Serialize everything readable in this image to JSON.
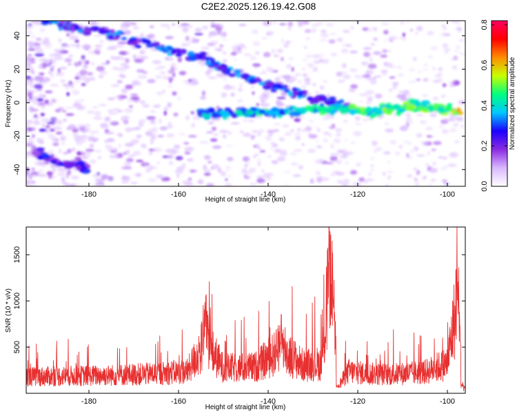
{
  "title": "C2E2.2025.126.19.42.G08",
  "chart_data": [
    {
      "type": "heatmap",
      "xlabel": "Height of straight line (km)",
      "ylabel": "Frequency (Hz)",
      "xlim": [
        -194,
        -96
      ],
      "ylim": [
        -50,
        49
      ],
      "x_ticks": [
        "-180",
        "-160",
        "-140",
        "-120",
        "-100"
      ],
      "y_ticks": [
        "-40",
        "-20",
        "0",
        "20",
        "40"
      ],
      "colorbar": {
        "label": "Normalized spectral amplitude",
        "range": [
          0,
          0.82
        ],
        "ticks": [
          "0.0",
          "0.2",
          "0.4",
          "0.6",
          "0.8"
        ],
        "colors": [
          "#ffffff",
          "#d9b8ff",
          "#8a2be2",
          "#1a00ff",
          "#00c8ff",
          "#00ff80",
          "#c8ff00",
          "#ff8c00",
          "#ff0000",
          "#ff0060"
        ]
      },
      "features": [
        {
          "name": "descending trace",
          "x": [
            -190,
            -178,
            -165,
            -155,
            -147,
            -140,
            -130,
            -122
          ],
          "y": [
            49,
            42,
            34,
            27,
            17,
            11,
            3,
            -2
          ]
        },
        {
          "name": "horizontal trace",
          "x": [
            -155,
            -145,
            -135,
            -125,
            -115,
            -108,
            -100,
            -97
          ],
          "y": [
            -7,
            -6,
            -5,
            -4,
            -5,
            -2,
            -4,
            -5
          ]
        },
        {
          "name": "lower branch",
          "x": [
            -192,
            -186,
            -180
          ],
          "y": [
            -30,
            -36,
            -39
          ]
        }
      ]
    },
    {
      "type": "line",
      "xlabel": "Height of straight line (km)",
      "ylabel": "SNR (10 * v/v)",
      "xlim": [
        -194,
        -96
      ],
      "ylim": [
        0,
        1800
      ],
      "x_ticks": [
        "-180",
        "-160",
        "-140",
        "-120",
        "-100"
      ],
      "y_ticks": [
        "500",
        "1000",
        "1500"
      ],
      "series": [
        {
          "color": "#e83030",
          "profile": [
            {
              "x": -194,
              "y": 210
            },
            {
              "x": -185,
              "y": 220
            },
            {
              "x": -175,
              "y": 230
            },
            {
              "x": -165,
              "y": 250
            },
            {
              "x": -158,
              "y": 280
            },
            {
              "x": -154,
              "y": 650
            },
            {
              "x": -150,
              "y": 320
            },
            {
              "x": -143,
              "y": 330
            },
            {
              "x": -137,
              "y": 560
            },
            {
              "x": -132,
              "y": 350
            },
            {
              "x": -128,
              "y": 380
            },
            {
              "x": -126,
              "y": 1650
            },
            {
              "x": -124.5,
              "y": 80
            },
            {
              "x": -122,
              "y": 280
            },
            {
              "x": -118,
              "y": 250
            },
            {
              "x": -112,
              "y": 240
            },
            {
              "x": -105,
              "y": 270
            },
            {
              "x": -100,
              "y": 380
            },
            {
              "x": -98,
              "y": 1100
            },
            {
              "x": -96.5,
              "y": 60
            }
          ],
          "peaks": [
            {
              "x": -154,
              "y": 1070
            },
            {
              "x": -137,
              "y": 780
            },
            {
              "x": -126,
              "y": 1790
            },
            {
              "x": -97.5,
              "y": 1240
            }
          ]
        }
      ]
    }
  ]
}
